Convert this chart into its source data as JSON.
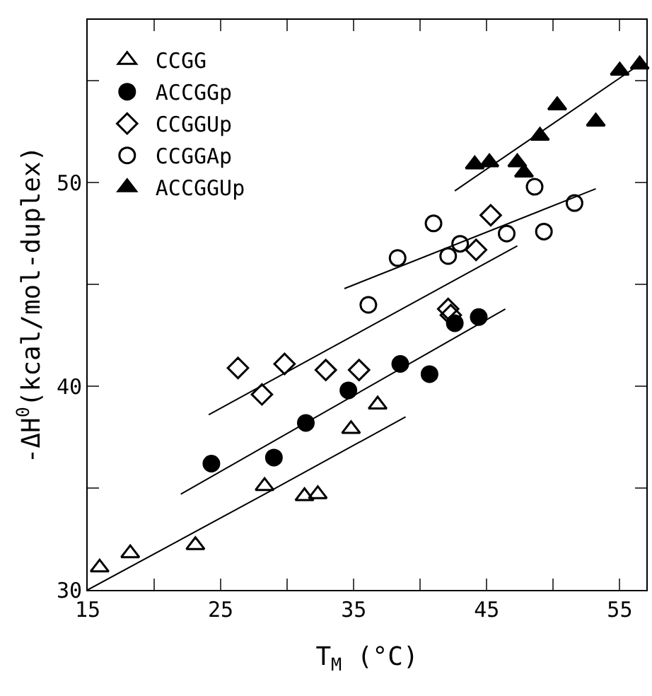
{
  "chart_data": {
    "type": "scatter",
    "xlabel": "T$_{M}$ (°C)",
    "ylabel": "-ΔH$^{0}$(kcal/mol-duplex)",
    "xlim": [
      15,
      57
    ],
    "ylim": [
      30,
      58
    ],
    "xticks": [
      15,
      {
        "value": 20,
        "label": null
      },
      25,
      {
        "value": 30,
        "label": null
      },
      35,
      {
        "value": 40,
        "label": null
      },
      45,
      {
        "value": 50,
        "label": null
      },
      55
    ],
    "yticks": [
      30,
      {
        "value": 35,
        "label": null
      },
      40,
      {
        "value": 45,
        "label": null
      },
      50,
      {
        "value": 55,
        "label": null
      }
    ],
    "grid": false,
    "legend": "top left",
    "series": [
      {
        "name": "CCGG",
        "color": "#000000",
        "marker": "triangle-open",
        "x": [
          15.9,
          18.2,
          23.1,
          28.3,
          31.3,
          32.3,
          34.8,
          36.8
        ],
        "values": [
          31.1,
          31.8,
          32.2,
          35.1,
          34.6,
          34.7,
          37.9,
          39.1
        ]
      },
      {
        "name": "ACCGGp",
        "color": "#000000",
        "marker": "circle",
        "x": [
          24.3,
          29.0,
          31.4,
          34.6,
          38.5,
          40.7,
          42.6,
          44.4
        ],
        "values": [
          36.2,
          36.5,
          38.2,
          39.8,
          41.1,
          40.6,
          43.1,
          43.4
        ]
      },
      {
        "name": "CCGGUp",
        "color": "#000000",
        "marker": "diamond-open",
        "x": [
          26.3,
          28.1,
          29.8,
          32.9,
          35.4,
          42.1,
          42.3,
          44.2,
          45.3
        ],
        "values": [
          40.9,
          39.6,
          41.1,
          40.8,
          40.8,
          43.8,
          43.5,
          46.7,
          48.4
        ]
      },
      {
        "name": "CCGGAp",
        "color": "#000000",
        "marker": "circle-open",
        "x": [
          36.1,
          38.3,
          41.0,
          42.1,
          43.0,
          46.5,
          49.3,
          48.6,
          51.6
        ],
        "values": [
          44.0,
          46.3,
          48.0,
          46.4,
          47.0,
          47.5,
          47.6,
          49.8,
          49.0
        ]
      },
      {
        "name": "ACCGGUp",
        "color": "#000000",
        "marker": "triangle",
        "x": [
          44.1,
          45.2,
          47.3,
          47.8,
          49.0,
          50.3,
          53.2,
          55.0,
          56.5
        ],
        "values": [
          50.9,
          51.0,
          51.0,
          50.5,
          52.3,
          53.8,
          53.0,
          55.5,
          55.8
        ]
      },
      {
        "type": "line",
        "color": "#000000",
        "x": [
          15,
          28.3,
          38.9
        ],
        "values": [
          30,
          34.7,
          38.5
        ]
      },
      {
        "type": "line",
        "color": "#000000",
        "x": [
          22.0,
          46.4
        ],
        "values": [
          34.7,
          43.8
        ]
      },
      {
        "type": "line",
        "color": "#000000",
        "x": [
          24.1,
          47.3
        ],
        "values": [
          38.6,
          46.9
        ]
      },
      {
        "type": "line",
        "color": "#000000",
        "x": [
          34.3,
          53.2
        ],
        "values": [
          44.8,
          49.7
        ]
      },
      {
        "type": "line",
        "color": "#000000",
        "x": [
          42.6,
          56.7
        ],
        "values": [
          49.6,
          55.9
        ]
      }
    ]
  }
}
